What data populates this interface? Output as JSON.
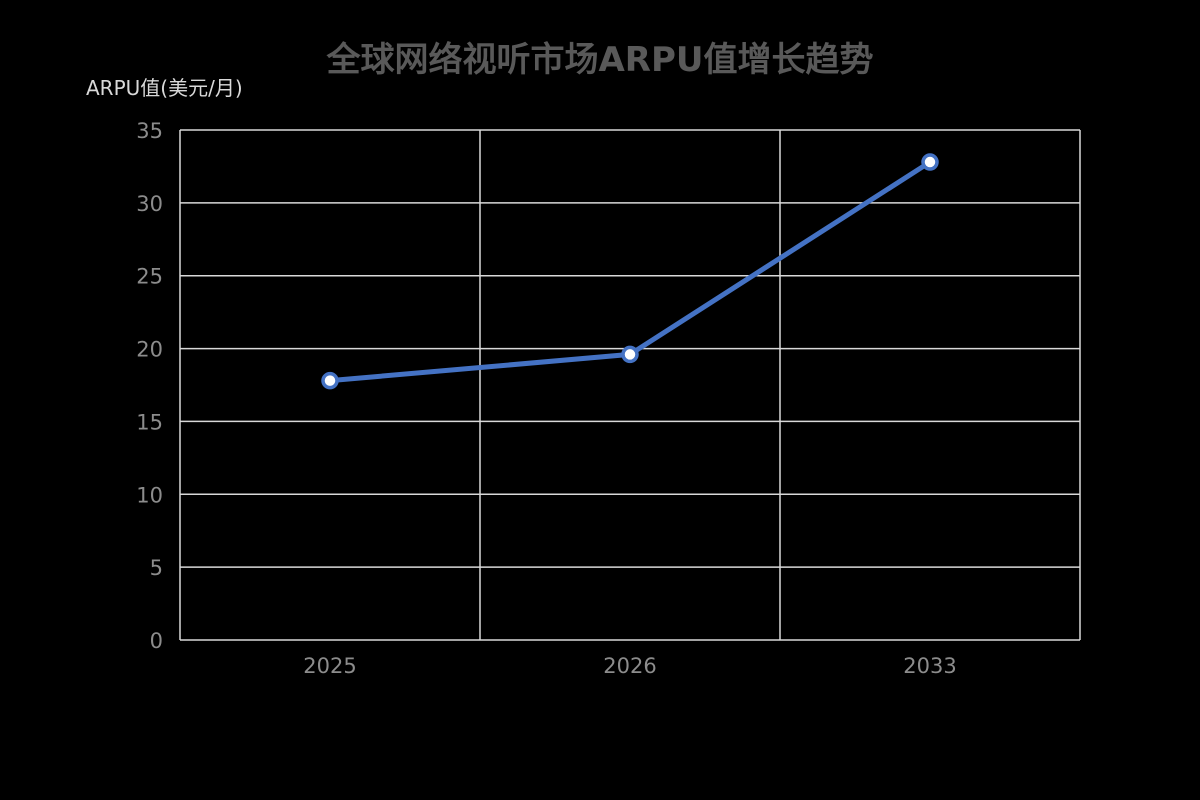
{
  "title": "全球网络视听市场ARPU值增长趋势",
  "y_axis_title": "ARPU值(美元/月)",
  "colors": {
    "background": "#000000",
    "line": "#4472c4",
    "grid": "#d9d9d9",
    "tick_text": "#8c8c8c",
    "title": "#595959"
  },
  "chart_data": {
    "type": "line",
    "title": "全球网络视听市场ARPU值增长趋势",
    "xlabel": "",
    "ylabel": "ARPU值(美元/月)",
    "categories": [
      "2025",
      "2026",
      "2033"
    ],
    "series": [
      {
        "name": "ARPU值",
        "values": [
          17.8,
          19.6,
          32.8
        ]
      }
    ],
    "ylim": [
      0,
      35
    ],
    "yticks": [
      0,
      5,
      10,
      15,
      20,
      25,
      30,
      35
    ],
    "grid": true,
    "legend": "none"
  }
}
